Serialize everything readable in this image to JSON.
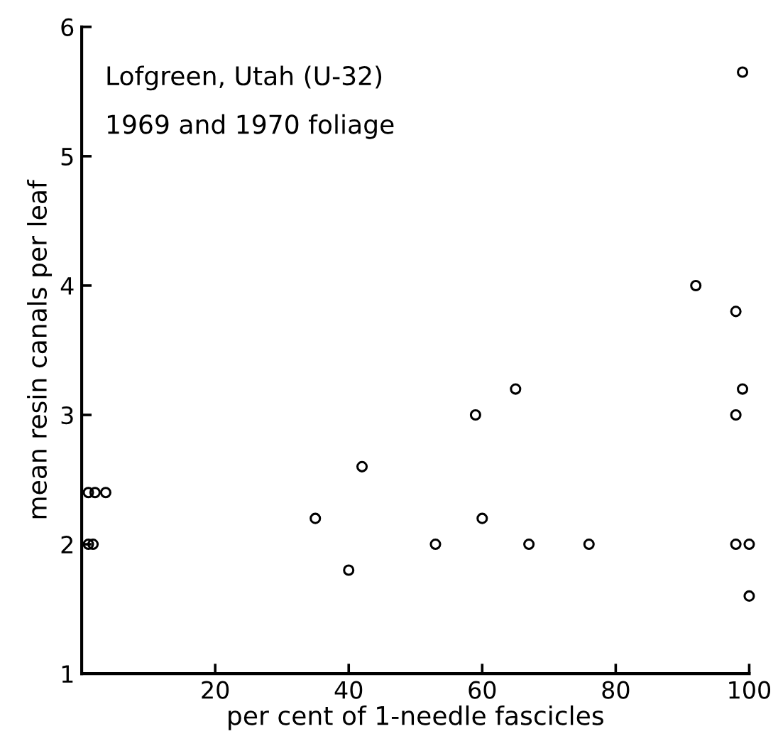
{
  "chart_data": {
    "type": "scatter",
    "xlabel": "per cent of 1-needle fascicles",
    "ylabel": "mean resin canals per leaf",
    "annotations": [
      "Lofgreen, Utah (U-32)",
      "1969 and 1970 foliage"
    ],
    "x": [
      1,
      2,
      3.6,
      1,
      1.7,
      35,
      40,
      42,
      53,
      59,
      60,
      65,
      67,
      76,
      92,
      98,
      98,
      98,
      99,
      99,
      100,
      100
    ],
    "series": [
      {
        "color": "#000000",
        "values": [
          2.4,
          2.4,
          2.4,
          2.0,
          2.0,
          2.2,
          1.8,
          2.6,
          2.0,
          3.0,
          2.2,
          3.2,
          2.0,
          2.0,
          4.0,
          3.8,
          3.0,
          2.0,
          3.2,
          5.65,
          2.0,
          1.6
        ]
      }
    ],
    "xlim": [
      0,
      100
    ],
    "ylim": [
      1,
      6
    ],
    "xticks": [
      20,
      40,
      60,
      80,
      100
    ],
    "yticks": [
      1,
      2,
      3,
      4,
      5,
      6
    ],
    "marker": "circle",
    "grid": false,
    "legend": false
  }
}
